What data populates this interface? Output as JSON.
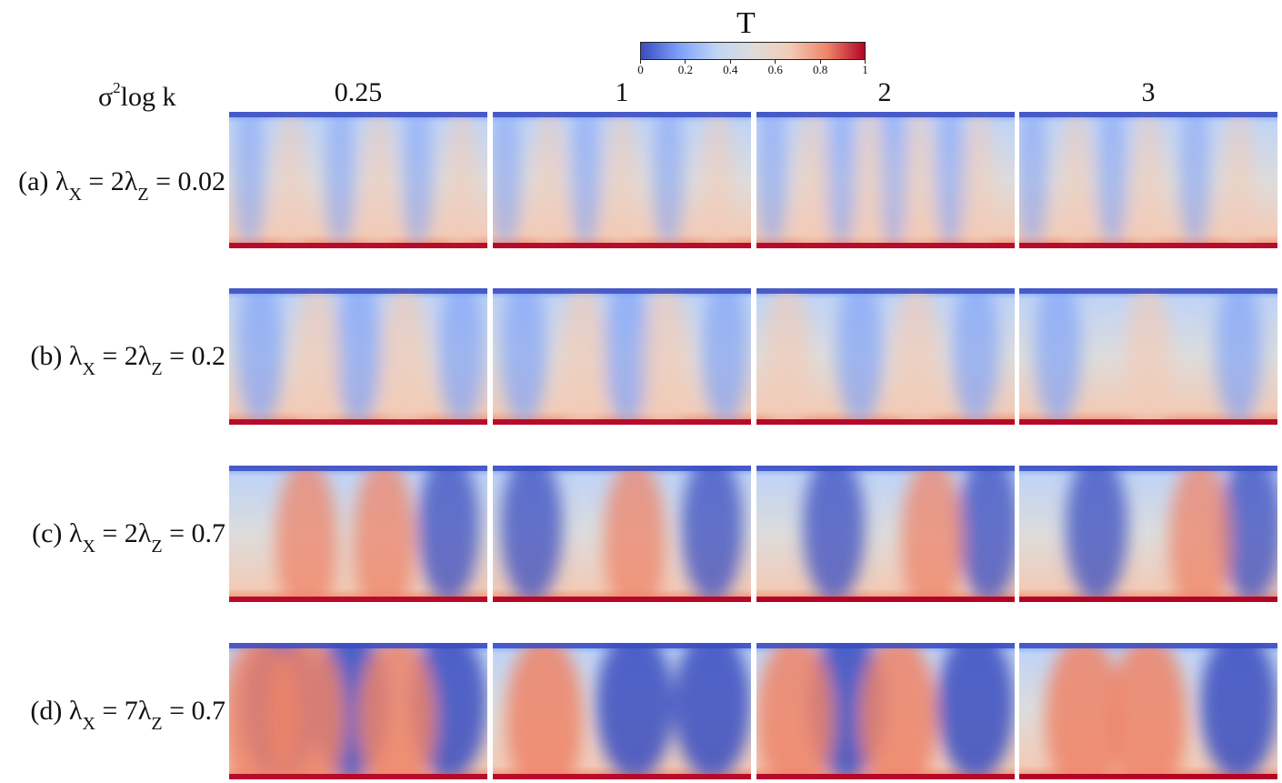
{
  "colorbar": {
    "title": "T",
    "ticks": [
      "0",
      "0.2",
      "0.4",
      "0.6",
      "0.8",
      "1"
    ],
    "tick_values": [
      0,
      0.2,
      0.4,
      0.6,
      0.8,
      1
    ],
    "colormap": [
      "#3b4cc0",
      "#7b9ff9",
      "#c0d4f5",
      "#dddcdc",
      "#f2cbb7",
      "#ee8468",
      "#b40426"
    ]
  },
  "column_variable": {
    "sigma": "σ",
    "exponent": "2",
    "rest": "log k"
  },
  "columns": [
    "0.25",
    "1",
    "2",
    "3"
  ],
  "rows": [
    {
      "prefix": "(a) λ",
      "sub1": "X",
      "mid": " = 2λ",
      "sub2": "Z",
      "suffix": " = 0.02"
    },
    {
      "prefix": "(b) λ",
      "sub1": "X",
      "mid": " = 2λ",
      "sub2": "Z",
      "suffix": " = 0.2"
    },
    {
      "prefix": "(c) λ",
      "sub1": "X",
      "mid": " = 2λ",
      "sub2": "Z",
      "suffix": " = 0.7"
    },
    {
      "prefix": "(d) λ",
      "sub1": "X",
      "mid": " = 7λ",
      "sub2": "Z",
      "suffix": " = 0.7"
    }
  ],
  "panels": [
    {
      "plumes": [
        0.24,
        0.58,
        0.9
      ],
      "cold": [
        0.08,
        0.43,
        0.73
      ],
      "bottom": 0.95
    },
    {
      "plumes": [
        0.22,
        0.5,
        0.87
      ],
      "cold": [
        0.05,
        0.36,
        0.68
      ],
      "bottom": 0.95
    },
    {
      "plumes": [
        0.22,
        0.44,
        0.63,
        0.86
      ],
      "cold": [
        0.06,
        0.33,
        0.53,
        0.75
      ],
      "bottom": 0.95
    },
    {
      "plumes": [
        0.22,
        0.5,
        0.85
      ],
      "cold": [
        0.05,
        0.36,
        0.68
      ],
      "bottom": 0.95
    },
    {
      "plumes": [
        0.34,
        0.68
      ],
      "cold": [
        0.12,
        0.5,
        0.9
      ],
      "bottom": 0.95
    },
    {
      "plumes": [
        0.35,
        0.67
      ],
      "cold": [
        0.12,
        0.52,
        0.9
      ],
      "bottom": 0.95
    },
    {
      "plumes": [
        0.12,
        0.62
      ],
      "cold": [
        0.4,
        0.85
      ],
      "bottom": 0.97
    },
    {
      "plumes": [
        0.5
      ],
      "cold": [
        0.15,
        0.85
      ],
      "bottom": 0.97
    },
    {
      "plumes": [
        0.3,
        0.6
      ],
      "cold": [
        0.85
      ],
      "bottom": 0.95
    },
    {
      "plumes": [
        0.55
      ],
      "cold": [
        0.15,
        0.85
      ],
      "bottom": 0.97
    },
    {
      "plumes": [
        0.68
      ],
      "cold": [
        0.3,
        0.9
      ],
      "bottom": 1.0
    },
    {
      "plumes": [
        0.7
      ],
      "cold": [
        0.3,
        0.9
      ],
      "bottom": 1.0
    },
    {
      "plumes": [
        0.12,
        0.3,
        0.65
      ],
      "cold": [
        0.2,
        0.47,
        0.85
      ],
      "bottom": 0.95
    },
    {
      "plumes": [
        0.2
      ],
      "cold": [
        0.55,
        0.85
      ],
      "bottom": 0.95
    },
    {
      "plumes": [
        0.15,
        0.55
      ],
      "cold": [
        0.35,
        0.85
      ],
      "bottom": 0.97
    },
    {
      "plumes": [
        0.25,
        0.5
      ],
      "cold": [
        0.85
      ],
      "bottom": 1.0
    }
  ]
}
